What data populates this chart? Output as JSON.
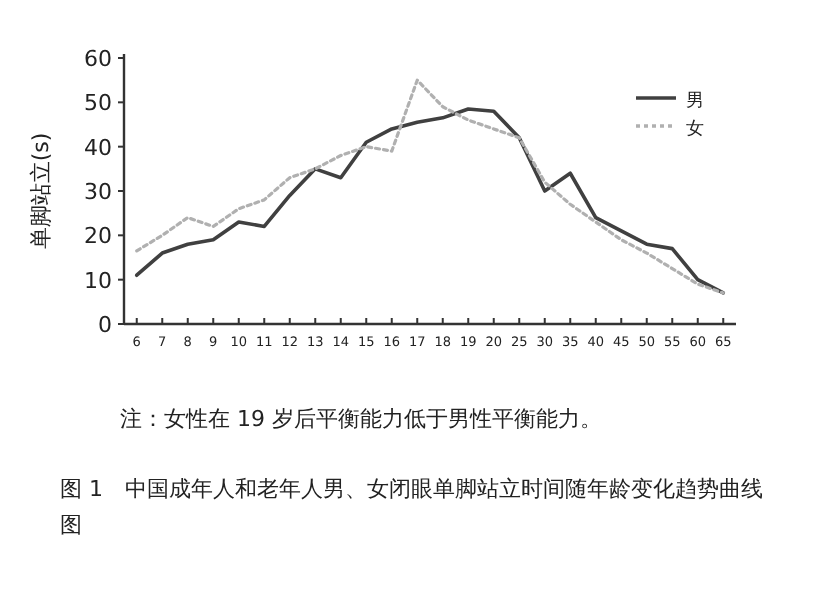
{
  "chart_data": {
    "type": "line",
    "ylabel": "单脚站立(s)",
    "categories": [
      "6",
      "7",
      "8",
      "9",
      "10",
      "11",
      "12",
      "13",
      "14",
      "15",
      "16",
      "17",
      "18",
      "19",
      "20",
      "25",
      "30",
      "35",
      "40",
      "45",
      "50",
      "55",
      "60",
      "65"
    ],
    "series": [
      {
        "name": "男",
        "color": "#404040",
        "line_style": "solid",
        "values": [
          11,
          16,
          18,
          19,
          23,
          22,
          29,
          35,
          33,
          41,
          44,
          45.5,
          46.5,
          48.5,
          48,
          42,
          30,
          34,
          24,
          21,
          18,
          17,
          10,
          7
        ]
      },
      {
        "name": "女",
        "color": "#b0b0b0",
        "line_style": "dotted",
        "values": [
          16.5,
          20,
          24,
          22,
          26,
          28,
          33,
          35,
          38,
          40,
          39,
          55,
          49,
          46,
          44,
          42,
          32,
          27,
          23,
          19,
          16,
          12.5,
          9,
          7
        ]
      }
    ],
    "ylim": [
      0,
      60
    ],
    "yticks": [
      0,
      10,
      20,
      30,
      40,
      50,
      60
    ],
    "grid": false,
    "legend": "top right",
    "marker": "none",
    "annotations": [
      "注：女性在 19 岁后平衡能力低于男性平衡能力。",
      "图 1　中国成年人和老年人男、女闭眼单脚站立时间随年龄变化趋势曲线图"
    ]
  }
}
